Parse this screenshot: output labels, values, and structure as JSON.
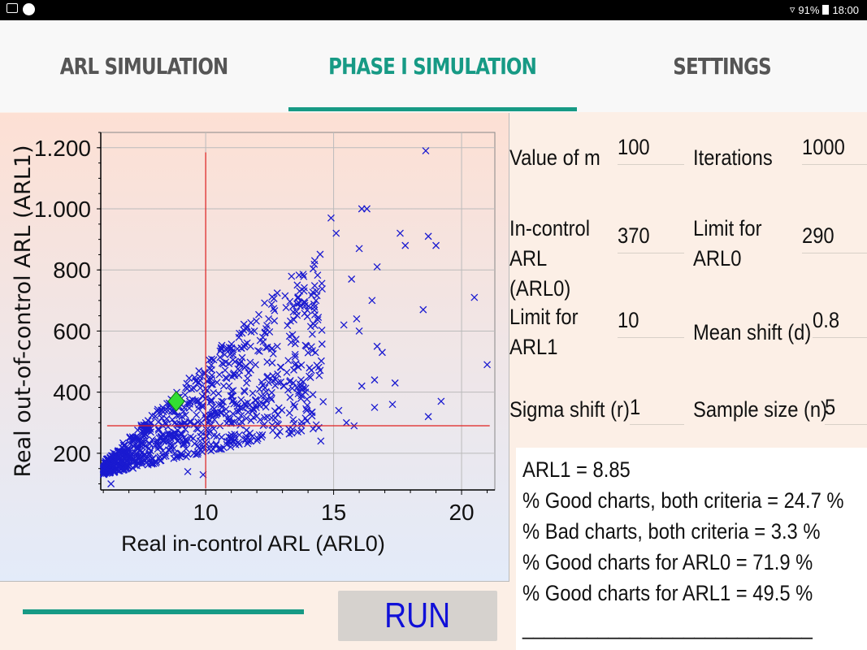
{
  "status_bar": {
    "battery": "91%",
    "time": "18:00"
  },
  "tabs": [
    {
      "label": "ARL SIMULATION"
    },
    {
      "label": "PHASE I SIMULATION"
    },
    {
      "label": "SETTINGS"
    }
  ],
  "colors": {
    "accent": "#179a85",
    "run_text": "#1010d8",
    "points": "#1a1ad0",
    "ref_lines": "#e02020",
    "marker": "#33dd33"
  },
  "params": {
    "m_label": "Value of m",
    "m_value": "100",
    "iter_label": "Iterations",
    "iter_value": "1000",
    "arl0_label": "In-control ARL (ARL0)",
    "arl0_value": "370",
    "lim0_label": "Limit for ARL0",
    "lim0_value": "290",
    "lim1_label": "Limit for ARL1",
    "lim1_value": "10",
    "d_label": "Mean shift (d)",
    "d_value": "0.8",
    "r_label": "Sigma shift (r)",
    "r_value": "1",
    "n_label": "Sample size (n)",
    "n_value": "5"
  },
  "results": {
    "line1": "ARL1 = 8.85",
    "line2": "% Good charts, both criteria = 24.7 %",
    "line3": "% Bad charts, both criteria = 3.3 %",
    "line4": "% Good charts for ARL0 = 71.9 %",
    "line5": "% Good charts for ARL1 = 49.5 %",
    "line6": "___________________________"
  },
  "run_label": "RUN",
  "chart_data": {
    "type": "scatter",
    "title": "",
    "xlabel": "Real in-control ARL (ARL0)",
    "ylabel": "Real out-of-control ARL (ARL1)",
    "xlim": [
      5.9,
      21.3
    ],
    "ylim": [
      80,
      1250
    ],
    "xticks": [
      10,
      15,
      20
    ],
    "yticks": [
      200,
      400,
      600,
      800,
      1000,
      1200
    ],
    "ytick_labels": [
      "200",
      "400",
      "600",
      "800",
      "1.000",
      "1.200"
    ],
    "grid": true,
    "ref_lines": {
      "vertical_x": 10,
      "horizontal_y": 290
    },
    "highlight_point": {
      "x": 8.85,
      "y": 370
    },
    "outliers": [
      [
        18.6,
        1190
      ],
      [
        16.3,
        1000
      ],
      [
        16.1,
        1000
      ],
      [
        14.9,
        970
      ],
      [
        15.1,
        920
      ],
      [
        17.6,
        920
      ],
      [
        18.7,
        910
      ],
      [
        16.0,
        870
      ],
      [
        17.8,
        880
      ],
      [
        19.0,
        880
      ],
      [
        16.7,
        810
      ],
      [
        20.5,
        710
      ],
      [
        21.0,
        490
      ],
      [
        18.5,
        670
      ],
      [
        19.2,
        370
      ],
      [
        18.7,
        320
      ],
      [
        17.4,
        430
      ],
      [
        17.3,
        360
      ],
      [
        16.6,
        440
      ],
      [
        16.7,
        550
      ],
      [
        16.5,
        700
      ],
      [
        15.7,
        770
      ],
      [
        15.9,
        640
      ],
      [
        16.0,
        600
      ],
      [
        15.4,
        620
      ],
      [
        16.1,
        420
      ],
      [
        15.5,
        300
      ],
      [
        15.8,
        290
      ],
      [
        14.5,
        240
      ],
      [
        14.2,
        280
      ],
      [
        13.6,
        270
      ],
      [
        13.9,
        400
      ],
      [
        15.2,
        340
      ],
      [
        16.6,
        350
      ],
      [
        16.9,
        530
      ],
      [
        6.1,
        140
      ],
      [
        6.3,
        100
      ],
      [
        9.9,
        130
      ],
      [
        9.3,
        140
      ],
      [
        12.1,
        260
      ]
    ],
    "cloud": {
      "count": 900,
      "description_free": true,
      "x_range": [
        6.0,
        14.6
      ],
      "y_baseline": [
        130,
        280
      ],
      "trend_slope": 65
    }
  }
}
